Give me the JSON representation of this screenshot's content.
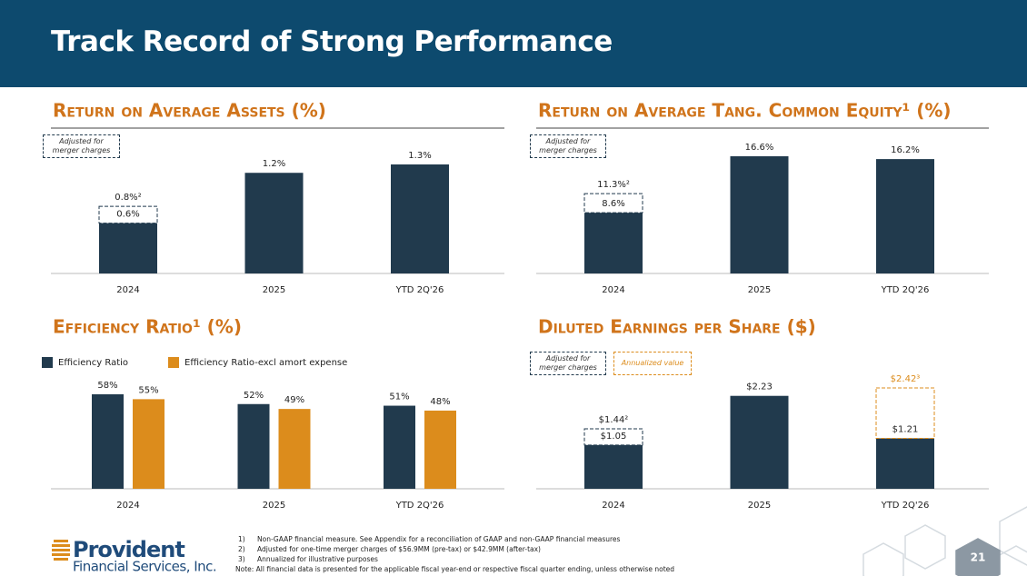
{
  "header": {
    "title": "Track Record of Strong Performance"
  },
  "chart_data": [
    {
      "type": "bar",
      "title": "Return on Average Assets (%)",
      "categories": [
        "2024",
        "2025",
        "YTD 2Q'26"
      ],
      "values": [
        0.6,
        1.2,
        1.3
      ],
      "value_labels": [
        "0.6%",
        "1.2%",
        "1.3%"
      ],
      "color": "#213a4d",
      "overlays": [
        {
          "label": "Adjusted for merger charges",
          "color": "#213a4d",
          "values": [
            0.8,
            null,
            null
          ],
          "value_labels": [
            "0.8%²",
            null,
            null
          ]
        }
      ]
    },
    {
      "type": "bar",
      "title": "Return on Average Tang. Common Equity¹ (%)",
      "categories": [
        "2024",
        "2025",
        "YTD 2Q'26"
      ],
      "values": [
        8.6,
        16.6,
        16.2
      ],
      "value_labels": [
        "8.6%",
        "16.6%",
        "16.2%"
      ],
      "color": "#213a4d",
      "overlays": [
        {
          "label": "Adjusted for merger charges",
          "color": "#213a4d",
          "values": [
            11.3,
            null,
            null
          ],
          "value_labels": [
            "11.3%²",
            null,
            null
          ]
        }
      ]
    },
    {
      "type": "bar",
      "title": "Efficiency Ratio¹ (%)",
      "categories": [
        "2024",
        "2025",
        "YTD 2Q'26"
      ],
      "series": [
        {
          "name": "Efficiency Ratio",
          "color": "#213a4d",
          "values": [
            58,
            52,
            51
          ],
          "value_labels": [
            "58%",
            "52%",
            "51%"
          ]
        },
        {
          "name": "Efficiency Ratio-excl amort expense",
          "color": "#dc8c1c",
          "values": [
            55,
            49,
            48
          ],
          "value_labels": [
            "55%",
            "49%",
            "48%"
          ]
        }
      ]
    },
    {
      "type": "bar",
      "title": "Diluted Earnings per Share ($)",
      "categories": [
        "2024",
        "2025",
        "YTD 2Q'26"
      ],
      "values": [
        1.05,
        2.23,
        1.21
      ],
      "value_labels": [
        "$1.05",
        "$2.23",
        "$1.21"
      ],
      "color": "#213a4d",
      "overlays": [
        {
          "label": "Adjusted for merger charges",
          "color": "#213a4d",
          "values": [
            1.44,
            null,
            null
          ],
          "value_labels": [
            "$1.44²",
            null,
            null
          ]
        },
        {
          "label": "Annualized value",
          "color": "#dc8c1c",
          "values": [
            null,
            null,
            2.42
          ],
          "value_labels": [
            null,
            null,
            "$2.42³"
          ]
        }
      ]
    }
  ],
  "footnotes": [
    {
      "marker": "1)",
      "text": "Non-GAAP financial measure. See Appendix for a reconciliation of GAAP and non-GAAP financial measures"
    },
    {
      "marker": "2)",
      "text": "Adjusted for one-time merger charges of $56.9MM (pre-tax) or $42.9MM (after-tax)"
    },
    {
      "marker": "3)",
      "text": "Annualized for illustrative purposes"
    }
  ],
  "note": "Note: All financial data is presented for the applicable fiscal year-end or respective fiscal quarter ending, unless otherwise noted",
  "logo": {
    "name": "Provident",
    "tagline": "Financial Services, Inc."
  },
  "page_number": "21"
}
